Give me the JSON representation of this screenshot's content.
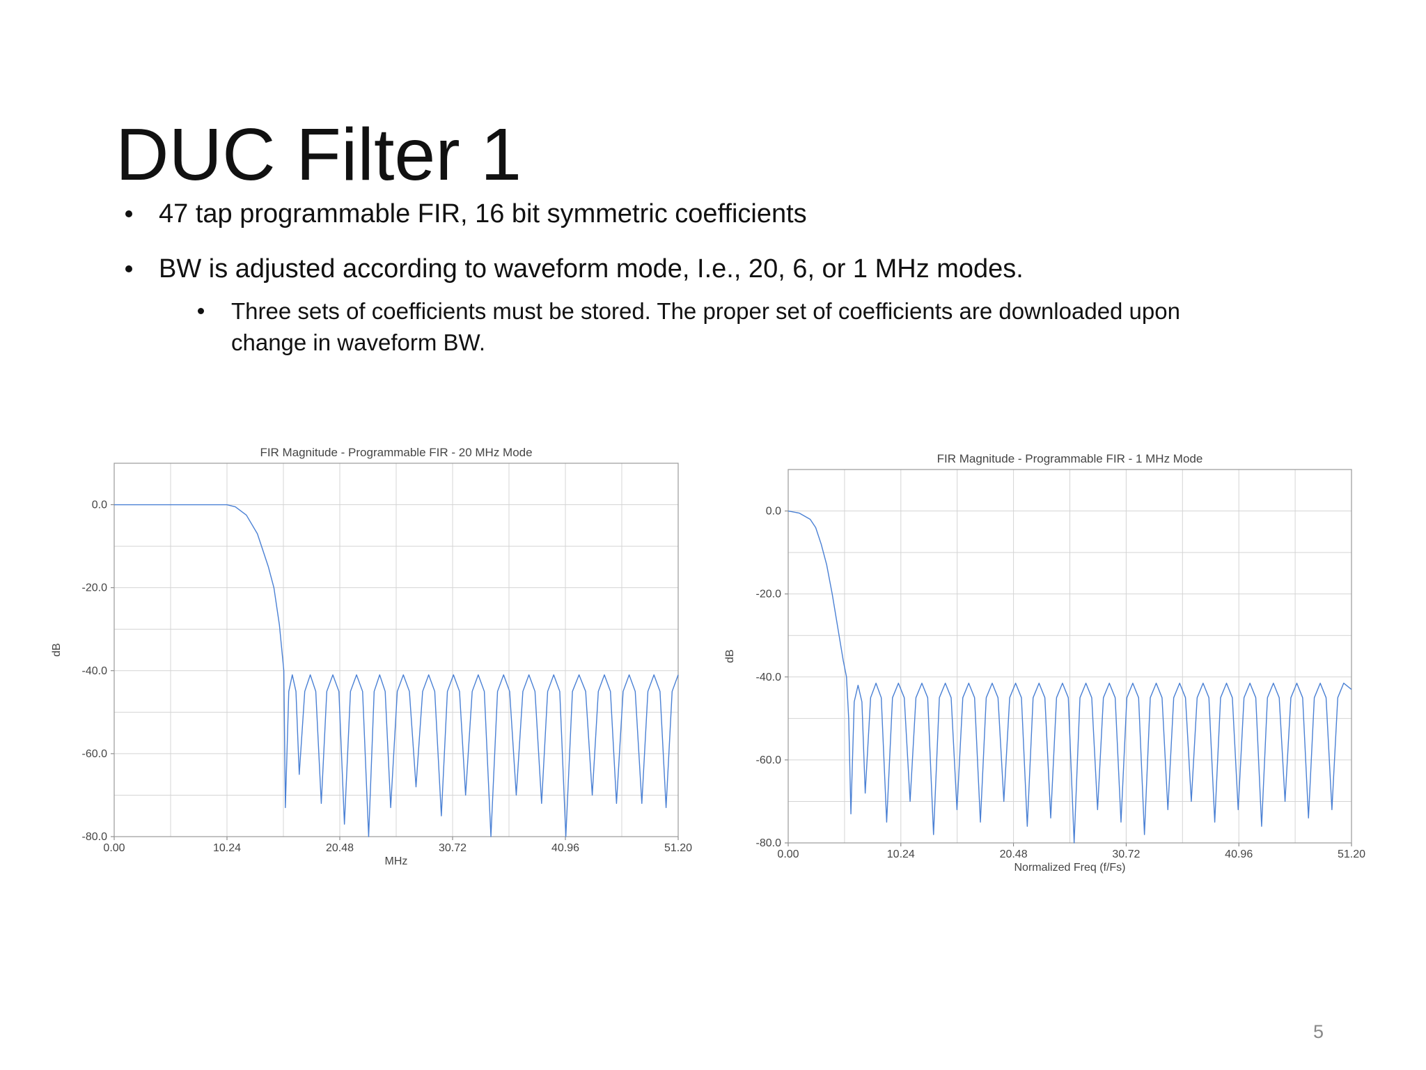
{
  "slide": {
    "title": "DUC Filter 1",
    "bullets": [
      {
        "text": "47 tap programmable FIR, 16 bit symmetric coefficients"
      },
      {
        "text": "BW is adjusted according to waveform mode, I.e., 20, 6, or 1 MHz modes.",
        "sub": [
          "Three sets of coefficients must be stored. The proper set of coefficients are downloaded upon change in waveform BW."
        ]
      }
    ],
    "page_number": "5"
  },
  "chart_data": [
    {
      "type": "line",
      "title": "FIR Magnitude - Programmable FIR - 20 MHz Mode",
      "x_label": "MHz",
      "y_label": "dB",
      "x": [
        0,
        10.24,
        11,
        12,
        13,
        14,
        14.5,
        15,
        15.4,
        15.54,
        15.85,
        16.17,
        16.5,
        16.8,
        17.3,
        17.8,
        18.3,
        18.8,
        19.3,
        19.85,
        20.4,
        20.9,
        21.45,
        22.0,
        22.55,
        23.1,
        23.6,
        24.1,
        24.6,
        25.1,
        25.7,
        26.25,
        26.8,
        27.4,
        28.0,
        28.55,
        29.1,
        29.7,
        30.25,
        30.8,
        31.35,
        31.9,
        32.5,
        33.05,
        33.6,
        34.2,
        34.8,
        35.35,
        35.9,
        36.5,
        37.1,
        37.65,
        38.2,
        38.8,
        39.35,
        39.9,
        40.45,
        41.0,
        41.6,
        42.2,
        42.8,
        43.4,
        43.95,
        44.5,
        45.05,
        45.6,
        46.2,
        46.75,
        47.3,
        47.9,
        48.45,
        49.0,
        49.55,
        50.1,
        50.65,
        51.2
      ],
      "series": [
        {
          "color": "#4a80d4",
          "values": [
            0,
            0,
            -0.5,
            -2.5,
            -7,
            -15,
            -20,
            -29,
            -40,
            -73,
            -45,
            -41,
            -45,
            -65,
            -45,
            -41,
            -45,
            -72,
            -45,
            -41,
            -45,
            -77,
            -45,
            -41,
            -45,
            -80,
            -45,
            -41,
            -45,
            -73,
            -45,
            -41,
            -45,
            -68,
            -45,
            -41,
            -45,
            -75,
            -45,
            -41,
            -45,
            -70,
            -45,
            -41,
            -45,
            -80,
            -45,
            -41,
            -45,
            -70,
            -45,
            -41,
            -45,
            -72,
            -45,
            -41,
            -45,
            -80,
            -45,
            -41,
            -45,
            -70,
            -45,
            -41,
            -45,
            -72,
            -45,
            -41,
            -45,
            -72,
            -45,
            -41,
            -45,
            -73,
            -45,
            -41
          ]
        }
      ],
      "xlim": [
        0,
        51.2
      ],
      "ylim": [
        -80,
        10
      ],
      "xticks": [
        {
          "value": 0,
          "label": "0.00"
        },
        10.24,
        20.48,
        30.72,
        40.96,
        {
          "value": 51.2,
          "label": "51.20"
        }
      ],
      "yticks": [
        {
          "value": 0,
          "label": "0.0"
        },
        {
          "value": -20,
          "label": "-20.0"
        },
        {
          "value": -40,
          "label": "-40.0"
        },
        {
          "value": -60,
          "label": "-60.0"
        },
        {
          "value": -80,
          "label": "-80.0"
        }
      ],
      "minor_xticks": [
        5.12,
        15.36,
        25.6,
        35.84,
        46.08
      ],
      "minor_yticks": [
        -10,
        -30,
        -50,
        -70
      ],
      "grid": true
    },
    {
      "type": "line",
      "title": "FIR Magnitude - Programmable FIR - 1 MHz Mode",
      "x_label": "Normalized Freq (f/Fs)",
      "y_label": "dB",
      "x": [
        0,
        1,
        2,
        2.5,
        3,
        3.5,
        4,
        4.5,
        5,
        5.3,
        5.5,
        5.7,
        6.0,
        6.35,
        6.7,
        7.0,
        7.49,
        7.98,
        8.46,
        8.95,
        9.48,
        10.02,
        10.55,
        11.08,
        11.61,
        12.15,
        12.68,
        13.21,
        13.74,
        14.28,
        14.81,
        15.34,
        15.87,
        16.41,
        16.94,
        17.47,
        18.0,
        18.54,
        19.07,
        19.6,
        20.13,
        20.67,
        21.2,
        21.73,
        22.26,
        22.8,
        23.33,
        23.86,
        24.39,
        24.93,
        25.46,
        25.99,
        26.52,
        27.06,
        27.59,
        28.12,
        28.65,
        29.19,
        29.72,
        30.25,
        30.78,
        31.32,
        31.85,
        32.38,
        32.91,
        33.45,
        33.98,
        34.51,
        35.04,
        35.58,
        36.11,
        36.64,
        37.17,
        37.71,
        38.24,
        38.77,
        39.3,
        39.84,
        40.37,
        40.9,
        41.43,
        41.97,
        42.5,
        43.03,
        43.56,
        44.1,
        44.63,
        45.16,
        45.69,
        46.23,
        46.76,
        47.29,
        47.82,
        48.36,
        48.89,
        49.42,
        49.95,
        50.49,
        51.2
      ],
      "series": [
        {
          "color": "#4a80d4",
          "values": [
            0,
            -0.5,
            -2,
            -4,
            -8,
            -13,
            -20,
            -28,
            -36,
            -40,
            -50,
            -73,
            -46,
            -42,
            -46,
            -68,
            -45,
            -41.5,
            -45,
            -75,
            -45,
            -41.5,
            -45,
            -70,
            -45,
            -41.5,
            -45,
            -78,
            -45,
            -41.5,
            -45,
            -72,
            -45,
            -41.5,
            -45,
            -75,
            -45,
            -41.5,
            -45,
            -70,
            -45,
            -41.5,
            -45,
            -76,
            -45,
            -41.5,
            -45,
            -74,
            -45,
            -41.5,
            -45,
            -80,
            -45,
            -41.5,
            -45,
            -72,
            -45,
            -41.5,
            -45,
            -75,
            -45,
            -41.5,
            -45,
            -78,
            -45,
            -41.5,
            -45,
            -72,
            -45,
            -41.5,
            -45,
            -70,
            -45,
            -41.5,
            -45,
            -75,
            -45,
            -41.5,
            -45,
            -72,
            -45,
            -41.5,
            -45,
            -76,
            -45,
            -41.5,
            -45,
            -70,
            -45,
            -41.5,
            -45,
            -74,
            -45,
            -41.5,
            -45,
            -72,
            -45,
            -41.5,
            -43
          ]
        }
      ],
      "xlim": [
        0,
        51.2
      ],
      "ylim": [
        -80,
        10
      ],
      "xticks": [
        {
          "value": 0,
          "label": "0.00"
        },
        10.24,
        20.48,
        30.72,
        40.96,
        {
          "value": 51.2,
          "label": "51.20"
        }
      ],
      "yticks": [
        {
          "value": 0,
          "label": "0.0"
        },
        {
          "value": -20,
          "label": "-20.0"
        },
        {
          "value": -40,
          "label": "-40.0"
        },
        {
          "value": -60,
          "label": "-60.0"
        },
        {
          "value": -80,
          "label": "-80.0"
        }
      ],
      "minor_xticks": [
        5.12,
        15.36,
        25.6,
        35.84,
        46.08
      ],
      "minor_yticks": [
        -10,
        -30,
        -50,
        -70
      ],
      "grid": true
    }
  ]
}
